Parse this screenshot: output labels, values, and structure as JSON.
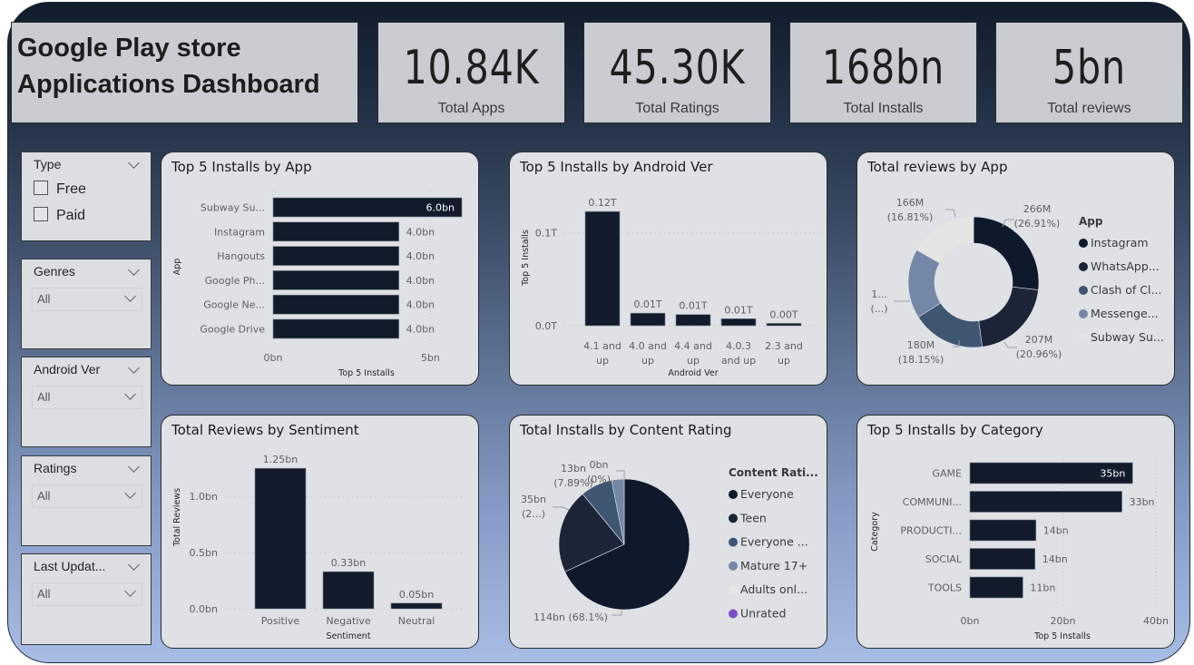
{
  "header": {
    "title_line1": "Google Play store",
    "title_line2": "Applications Dashboard"
  },
  "kpis": [
    {
      "value": "10.84K",
      "label": "Total Apps"
    },
    {
      "value": "45.30K",
      "label": "Total Ratings"
    },
    {
      "value": "168bn",
      "label": "Total Installs"
    },
    {
      "value": "5bn",
      "label": "Total reviews"
    }
  ],
  "slicers": {
    "type": {
      "title": "Type",
      "options": [
        "Free",
        "Paid"
      ]
    },
    "genres": {
      "title": "Genres",
      "value": "All"
    },
    "android_ver": {
      "title": "Android Ver",
      "value": "All"
    },
    "ratings": {
      "title": "Ratings",
      "value": "All"
    },
    "last_updated": {
      "title": "Last Updat...",
      "value": "All"
    }
  },
  "colors": {
    "bar": "#111b2b",
    "donut": [
      "#0e1a2b",
      "#1c2538",
      "#3f5673",
      "#7587a6",
      "#e5e6e4"
    ],
    "pie": [
      "#0e1a2b",
      "#1c2538",
      "#3f5673",
      "#7587a6",
      "#e5e6e4",
      "#7d4fc9"
    ]
  },
  "chart_data": [
    {
      "id": "installs_by_app",
      "type": "bar",
      "orientation": "horizontal",
      "title": "Top 5 Installs by App",
      "xlabel": "Top 5 Installs",
      "ylabel": "App",
      "categories": [
        "Subway Su...",
        "Instagram",
        "Hangouts",
        "Google Ph...",
        "Google Ne...",
        "Google Drive"
      ],
      "values": [
        6.0,
        4.0,
        4.0,
        4.0,
        4.0,
        4.0
      ],
      "data_labels": [
        "6.0bn",
        "4.0bn",
        "4.0bn",
        "4.0bn",
        "4.0bn",
        "4.0bn"
      ],
      "unit": "bn",
      "xlim": [
        0,
        6
      ],
      "xticks": [
        {
          "v": 0,
          "label": "0bn"
        },
        {
          "v": 5,
          "label": "5bn"
        }
      ]
    },
    {
      "id": "installs_by_android",
      "type": "bar",
      "orientation": "vertical",
      "title": "Top 5 Installs by Android Ver",
      "xlabel": "Android Ver",
      "ylabel": "Top 5 Installs",
      "categories": [
        [
          "4.1 and",
          "up"
        ],
        [
          "4.0 and",
          "up"
        ],
        [
          "4.4 and",
          "up"
        ],
        [
          "4.0.3",
          "and up"
        ],
        [
          "2.3 and",
          "up"
        ]
      ],
      "values": [
        0.123,
        0.0135,
        0.012,
        0.0075,
        0.0025
      ],
      "data_labels": [
        "0.12T",
        "0.01T",
        "0.01T",
        "0.01T",
        "0.00T"
      ],
      "unit": "T",
      "ylim": [
        0,
        0.13
      ],
      "yticks": [
        {
          "v": 0,
          "label": "0.0T"
        },
        {
          "v": 0.1,
          "label": "0.1T"
        }
      ]
    },
    {
      "id": "reviews_by_app",
      "type": "pie",
      "donut": true,
      "title": "Total reviews by App",
      "legend_title": "App",
      "legend_position": "right",
      "labels": [
        "Instagram",
        "WhatsApp...",
        "Clash of Cl...",
        "Messenge...",
        "Subway Su..."
      ],
      "values": [
        266,
        207,
        180,
        170,
        166
      ],
      "percents": [
        26.91,
        20.96,
        18.15,
        17.17,
        16.81
      ],
      "data_labels": [
        [
          "266M",
          "(26.91%)"
        ],
        [
          "207M",
          "(20.96%)"
        ],
        [
          "180M",
          "(18.15%)"
        ],
        [
          "1...",
          "(...)"
        ],
        [
          "166M",
          "(16.81%)"
        ]
      ],
      "unit": "M"
    },
    {
      "id": "reviews_by_sentiment",
      "type": "bar",
      "orientation": "vertical",
      "title": "Total Reviews by Sentiment",
      "xlabel": "Sentiment",
      "ylabel": "Total Reviews",
      "categories": [
        "Positive",
        "Negative",
        "Neutral"
      ],
      "values": [
        1.25,
        0.33,
        0.05
      ],
      "data_labels": [
        "1.25bn",
        "0.33bn",
        "0.05bn"
      ],
      "unit": "bn",
      "ylim": [
        0,
        1.3
      ],
      "yticks": [
        {
          "v": 0,
          "label": "0.0bn"
        },
        {
          "v": 0.5,
          "label": "0.5bn"
        },
        {
          "v": 1.0,
          "label": "1.0bn"
        }
      ]
    },
    {
      "id": "installs_by_content_rating",
      "type": "pie",
      "donut": false,
      "title": "Total Installs by Content Rating",
      "legend_title": "Content Rati...",
      "legend_position": "right",
      "labels": [
        "Everyone",
        "Teen",
        "Everyone ...",
        "Mature 17+",
        "Adults onl...",
        "Unrated"
      ],
      "values": [
        114,
        35,
        13,
        5.2,
        0,
        0
      ],
      "percents": [
        68.1,
        20.9,
        7.89,
        3.1,
        0,
        0
      ],
      "data_labels": [
        [
          "114bn (68.1%)"
        ],
        [
          "35bn",
          "(2...)"
        ],
        [
          "13bn",
          "(7.89%)"
        ],
        [
          "0bn",
          "(0%)"
        ]
      ],
      "unit": "bn"
    },
    {
      "id": "installs_by_category",
      "type": "bar",
      "orientation": "horizontal",
      "title": "Top 5 Installs by Category",
      "xlabel": "Top 5 Installs",
      "ylabel": "Category",
      "categories": [
        "GAME",
        "COMMUNI...",
        "PRODUCTI...",
        "SOCIAL",
        "TOOLS"
      ],
      "values": [
        35,
        32.7,
        14.2,
        14.0,
        11.4
      ],
      "data_labels": [
        "35bn",
        "33bn",
        "14bn",
        "14bn",
        "11bn"
      ],
      "unit": "bn",
      "xlim": [
        0,
        40
      ],
      "xticks": [
        {
          "v": 0,
          "label": "0bn"
        },
        {
          "v": 20,
          "label": "20bn"
        },
        {
          "v": 40,
          "label": "40bn"
        }
      ]
    }
  ]
}
